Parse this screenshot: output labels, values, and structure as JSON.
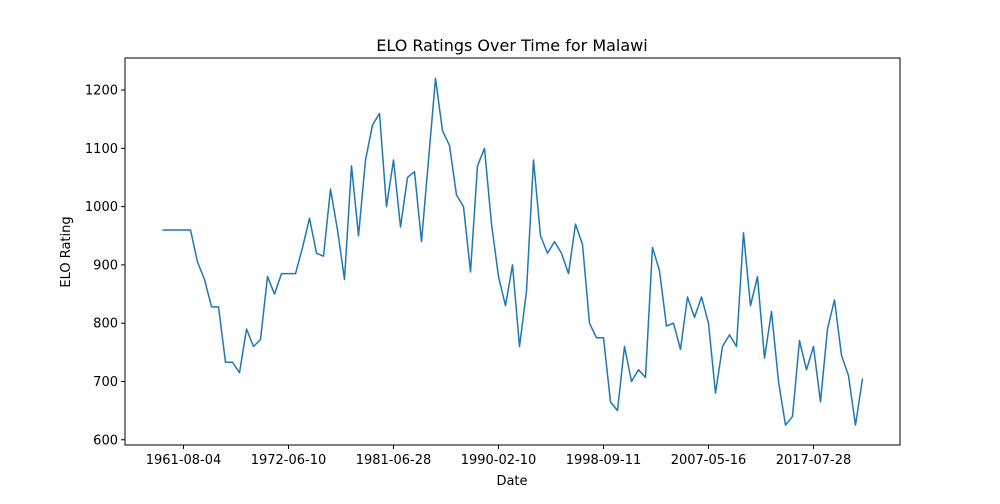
{
  "chart_data": {
    "type": "line",
    "title": "ELO Ratings Over Time for Malawi",
    "x_label": "Date",
    "y_label": "ELO Rating",
    "color": "#1f77b4",
    "grid": false,
    "categories": [
      "1957-05-10",
      "1958-10-12",
      "1960-03-20",
      "1961-08-04",
      "1962-04-20",
      "1963-01-12",
      "1963-10-05",
      "1964-07-06",
      "1965-04-18",
      "1966-01-09",
      "1966-10-02",
      "1967-06-25",
      "1968-03-17",
      "1968-12-08",
      "1969-09-01",
      "1970-05-24",
      "1971-02-14",
      "1971-11-07",
      "1972-06-10",
      "1973-01-20",
      "1973-08-25",
      "1974-04-07",
      "1974-11-16",
      "1975-06-29",
      "1976-02-08",
      "1976-09-18",
      "1977-04-30",
      "1977-12-10",
      "1978-07-22",
      "1979-03-03",
      "1979-10-13",
      "1980-05-24",
      "1980-12-06",
      "1981-06-28",
      "1982-01-24",
      "1982-08-14",
      "1983-03-05",
      "1983-09-24",
      "1984-04-14",
      "1984-11-03",
      "1985-05-25",
      "1985-12-14",
      "1986-07-05",
      "1987-01-24",
      "1987-08-15",
      "1988-03-05",
      "1988-09-24",
      "1989-04-15",
      "1990-02-10",
      "1990-08-25",
      "1991-03-16",
      "1991-10-05",
      "1992-04-25",
      "1992-11-14",
      "1993-06-05",
      "1993-12-25",
      "1994-07-16",
      "1995-02-04",
      "1995-08-26",
      "1996-03-16",
      "1996-10-05",
      "1997-04-26",
      "1997-11-15",
      "1998-09-11",
      "1999-04-10",
      "1999-11-06",
      "2000-06-03",
      "2000-12-30",
      "2001-07-28",
      "2002-02-23",
      "2002-09-21",
      "2003-04-19",
      "2003-11-15",
      "2004-06-12",
      "2005-01-08",
      "2005-08-06",
      "2006-03-04",
      "2006-09-30",
      "2007-05-16",
      "2008-01-19",
      "2008-09-20",
      "2009-05-23",
      "2010-01-23",
      "2010-09-25",
      "2011-05-28",
      "2012-01-28",
      "2012-09-29",
      "2013-06-01",
      "2014-02-01",
      "2014-10-04",
      "2015-06-06",
      "2016-02-06",
      "2016-10-08",
      "2017-07-28",
      "2018-03-24",
      "2018-11-17",
      "2019-07-13",
      "2020-03-07",
      "2020-10-31",
      "2021-06-26",
      "2022-02-19"
    ],
    "values": [
      960,
      960,
      960,
      960,
      960,
      905,
      875,
      828,
      828,
      733,
      733,
      715,
      790,
      760,
      772,
      880,
      850,
      885,
      885,
      885,
      930,
      980,
      920,
      915,
      1030,
      960,
      875,
      1070,
      950,
      1080,
      1140,
      1160,
      1000,
      1080,
      965,
      1050,
      1060,
      940,
      1080,
      1220,
      1130,
      1105,
      1020,
      1000,
      888,
      1070,
      1100,
      970,
      880,
      830,
      900,
      760,
      855,
      1080,
      950,
      920,
      940,
      920,
      885,
      970,
      935,
      800,
      775,
      775,
      665,
      650,
      760,
      700,
      720,
      707,
      930,
      890,
      795,
      800,
      755,
      845,
      810,
      845,
      800,
      680,
      760,
      780,
      760,
      955,
      830,
      880,
      740,
      820,
      700,
      625,
      640,
      770,
      720,
      760,
      665,
      790,
      840,
      745,
      710,
      625,
      705
    ],
    "xticks": [
      "1961-08-04",
      "1972-06-10",
      "1981-06-28",
      "1990-02-10",
      "1998-09-11",
      "2007-05-16",
      "2017-07-28"
    ],
    "ylim": [
      591,
      1255
    ],
    "yticks": [
      600,
      700,
      800,
      900,
      1000,
      1100,
      1200
    ]
  }
}
